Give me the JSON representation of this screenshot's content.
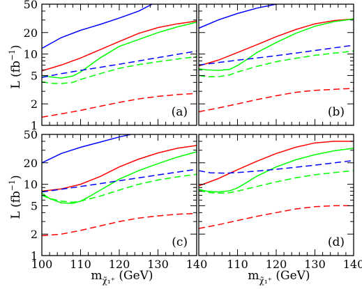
{
  "figure": {
    "ylabel": "L (fb",
    "ylabel_sup": "−1",
    "ylabel_close": ")",
    "xlabel_m": "m",
    "xlabel_sub": "χ̃₁⁺",
    "xlabel_unit": " (GeV)"
  },
  "chart_data": [
    {
      "type": "line",
      "panel_label": "(a)",
      "xlim": [
        100,
        140
      ],
      "ylim": [
        1,
        50
      ],
      "yscale": "log",
      "xticklabels": [],
      "yticklabels": [
        "1",
        "2",
        "5",
        "10",
        "20",
        "50"
      ],
      "series": [
        {
          "color": "#0000ff",
          "style": "solid",
          "x": [
            100,
            105,
            110,
            115,
            120,
            125,
            128.5
          ],
          "y": [
            12,
            17,
            21.5,
            26,
            32,
            40,
            50
          ]
        },
        {
          "color": "#ff0000",
          "style": "solid",
          "x": [
            100,
            105,
            110,
            115,
            120,
            125,
            130,
            135,
            140
          ],
          "y": [
            5.8,
            7,
            8.8,
            11.5,
            15,
            19.5,
            23.5,
            26.5,
            29
          ]
        },
        {
          "color": "#00ff00",
          "style": "solid",
          "x": [
            100,
            102,
            105,
            108,
            110,
            112,
            115,
            120,
            125,
            130,
            135,
            140
          ],
          "y": [
            5,
            4.8,
            4.6,
            4.9,
            5.6,
            6.7,
            8.8,
            12.8,
            16,
            20,
            24,
            28
          ]
        },
        {
          "color": "#0000ff",
          "style": "dashed",
          "x": [
            100,
            105,
            110,
            115,
            120,
            125,
            130,
            135,
            140
          ],
          "y": [
            4.7,
            5.3,
            5.9,
            6.5,
            7.2,
            8,
            8.9,
            9.9,
            11
          ]
        },
        {
          "color": "#00ff00",
          "style": "dashed",
          "x": [
            100,
            102,
            105,
            108,
            110,
            115,
            120,
            125,
            130,
            135,
            140
          ],
          "y": [
            4.1,
            3.9,
            3.85,
            4,
            4.4,
            5.3,
            6.3,
            7.1,
            7.8,
            8.5,
            9.2
          ]
        },
        {
          "color": "#ff0000",
          "style": "dashed",
          "x": [
            100,
            105,
            110,
            115,
            120,
            125,
            130,
            135,
            140
          ],
          "y": [
            1.3,
            1.45,
            1.62,
            1.85,
            2.1,
            2.35,
            2.55,
            2.7,
            2.8
          ]
        }
      ]
    },
    {
      "type": "line",
      "panel_label": "(b)",
      "xlim": [
        100,
        140
      ],
      "ylim": [
        1,
        50
      ],
      "yscale": "log",
      "xticklabels": [],
      "yticklabels": [],
      "series": [
        {
          "color": "#0000ff",
          "style": "solid",
          "x": [
            100,
            105,
            110,
            115,
            120
          ],
          "y": [
            23,
            30,
            37,
            44,
            50
          ]
        },
        {
          "color": "#ff0000",
          "style": "solid",
          "x": [
            100,
            105,
            110,
            115,
            120,
            125,
            130,
            135,
            140
          ],
          "y": [
            6.8,
            8.2,
            10.5,
            13.5,
            17.5,
            22,
            26.5,
            29.5,
            31
          ]
        },
        {
          "color": "#00ff00",
          "style": "solid",
          "x": [
            100,
            102,
            105,
            108,
            110,
            112,
            115,
            120,
            125,
            130,
            135,
            140
          ],
          "y": [
            6.2,
            6,
            5.9,
            6.1,
            6.9,
            8.1,
            10.5,
            14.5,
            19.5,
            24.5,
            28.5,
            31
          ]
        },
        {
          "color": "#0000ff",
          "style": "dashed",
          "x": [
            100,
            105,
            110,
            115,
            120,
            125,
            130,
            135,
            140
          ],
          "y": [
            7,
            7.6,
            8.2,
            8.8,
            9.5,
            10.3,
            11.2,
            12.2,
            13.3
          ]
        },
        {
          "color": "#00ff00",
          "style": "dashed",
          "x": [
            100,
            102,
            105,
            108,
            110,
            115,
            120,
            125,
            130,
            135,
            140
          ],
          "y": [
            5,
            4.8,
            4.8,
            5.1,
            5.6,
            6.7,
            7.8,
            8.7,
            9.6,
            10.3,
            11
          ]
        },
        {
          "color": "#ff0000",
          "style": "dashed",
          "x": [
            100,
            105,
            110,
            115,
            120,
            125,
            130,
            135,
            140
          ],
          "y": [
            1.55,
            1.75,
            2,
            2.3,
            2.6,
            2.9,
            3.1,
            3.2,
            3.3
          ]
        }
      ]
    },
    {
      "type": "line",
      "panel_label": "(c)",
      "xlim": [
        100,
        140
      ],
      "ylim": [
        1,
        50
      ],
      "yscale": "log",
      "xticklabels": [
        "100",
        "110",
        "120",
        "130",
        "140"
      ],
      "yticklabels": [
        "1",
        "2",
        "5",
        "10",
        "20",
        "50"
      ],
      "series": [
        {
          "color": "#0000ff",
          "style": "solid",
          "x": [
            100,
            105,
            110,
            115,
            120,
            123
          ],
          "y": [
            20,
            27,
            33,
            39,
            46,
            50
          ]
        },
        {
          "color": "#ff0000",
          "style": "solid",
          "x": [
            100,
            105,
            110,
            115,
            120,
            125,
            130,
            135,
            140
          ],
          "y": [
            8,
            8.6,
            10,
            12.8,
            17.5,
            22.5,
            27.5,
            32,
            35
          ]
        },
        {
          "color": "#00ff00",
          "style": "solid",
          "x": [
            100,
            102,
            105,
            108,
            110,
            112,
            115,
            120,
            125,
            130,
            135,
            140
          ],
          "y": [
            7.5,
            6.3,
            5.5,
            5.4,
            5.8,
            6.6,
            8.2,
            11.8,
            15.5,
            19.5,
            24,
            28.5
          ]
        },
        {
          "color": "#0000ff",
          "style": "dashed",
          "x": [
            100,
            105,
            110,
            115,
            120,
            125,
            130,
            135,
            140
          ],
          "y": [
            7.8,
            8.5,
            9.3,
            10.2,
            11.2,
            12.3,
            13.5,
            14.8,
            16.2
          ]
        },
        {
          "color": "#00ff00",
          "style": "dashed",
          "x": [
            100,
            102,
            105,
            108,
            110,
            115,
            120,
            125,
            130,
            135,
            140
          ],
          "y": [
            7,
            6.3,
            5.8,
            5.6,
            5.8,
            6.8,
            8.3,
            10,
            11.5,
            12.7,
            13.8
          ]
        },
        {
          "color": "#ff0000",
          "style": "dashed",
          "x": [
            100,
            105,
            110,
            115,
            120,
            125,
            130,
            135,
            140
          ],
          "y": [
            1.9,
            2,
            2.25,
            2.6,
            3,
            3.35,
            3.6,
            3.8,
            3.9
          ]
        }
      ]
    },
    {
      "type": "line",
      "panel_label": "(d)",
      "xlim": [
        100,
        140
      ],
      "ylim": [
        1,
        50
      ],
      "yscale": "log",
      "xticklabels": [
        "110",
        "120",
        "130",
        "140"
      ],
      "yticklabels": [],
      "series": [
        {
          "color": "#ff0000",
          "style": "solid",
          "x": [
            100,
            105,
            110,
            115,
            120,
            125,
            130,
            135,
            140
          ],
          "y": [
            9.5,
            12,
            16,
            21,
            27,
            33,
            38,
            40,
            40
          ]
        },
        {
          "color": "#00ff00",
          "style": "solid",
          "x": [
            100,
            102,
            105,
            108,
            110,
            112,
            115,
            120,
            125,
            130,
            135,
            140
          ],
          "y": [
            8.5,
            8,
            7.8,
            8.1,
            8.9,
            10.3,
            13,
            17.5,
            22,
            26,
            29.5,
            32
          ]
        },
        {
          "color": "#0000ff",
          "style": "dashed",
          "x": [
            100,
            103,
            107,
            110,
            115,
            120,
            125,
            130,
            135,
            140
          ],
          "y": [
            15.5,
            14.5,
            14.3,
            14.6,
            15.3,
            16.2,
            17.3,
            18.5,
            20,
            21.5
          ]
        },
        {
          "color": "#00ff00",
          "style": "dashed",
          "x": [
            100,
            102,
            105,
            108,
            110,
            115,
            120,
            125,
            130,
            135,
            140
          ],
          "y": [
            8.2,
            7.7,
            7.5,
            7.6,
            8,
            9.3,
            10.8,
            12.3,
            13.6,
            14.6,
            15.5
          ]
        },
        {
          "color": "#ff0000",
          "style": "dashed",
          "x": [
            100,
            105,
            110,
            115,
            120,
            125,
            130,
            135,
            140
          ],
          "y": [
            2.4,
            2.7,
            3.1,
            3.55,
            4,
            4.5,
            4.85,
            5,
            5
          ]
        }
      ]
    }
  ]
}
